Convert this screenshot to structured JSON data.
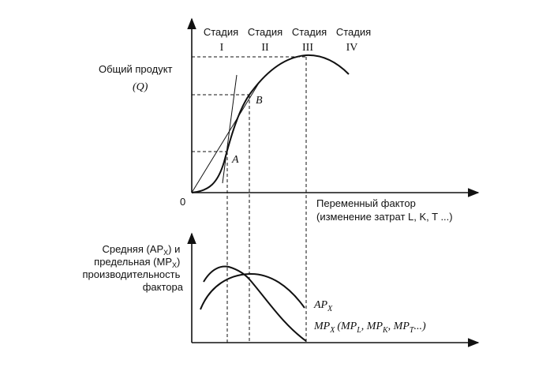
{
  "stages": {
    "header": [
      "Стадия",
      "Стадия",
      "Стадия",
      "Стадия"
    ],
    "numerals": [
      "I",
      "II",
      "III",
      "IV"
    ]
  },
  "top_graph": {
    "y_label_line1": "Общий продукт",
    "y_label_line2": "(Q)",
    "origin": "0",
    "x_label_line1": "Переменный фактор",
    "x_label_line2": "(изменение затрат L, K, T ...)",
    "point_a": "A",
    "point_b": "B"
  },
  "bottom_graph": {
    "y_label_lines": [
      "Средняя (AP",
      "X",
      ") и",
      "предельная (MP",
      "X",
      ")",
      "производительность",
      "фактора"
    ],
    "ap_label": "AP",
    "ap_sub": "X",
    "mp_label": "MP",
    "mp_sub": "X",
    "mp_detail": "(MP",
    "mp_l": "L",
    "mp_k": "K",
    "mp_t": "T",
    "mp_tail": "...)"
  }
}
